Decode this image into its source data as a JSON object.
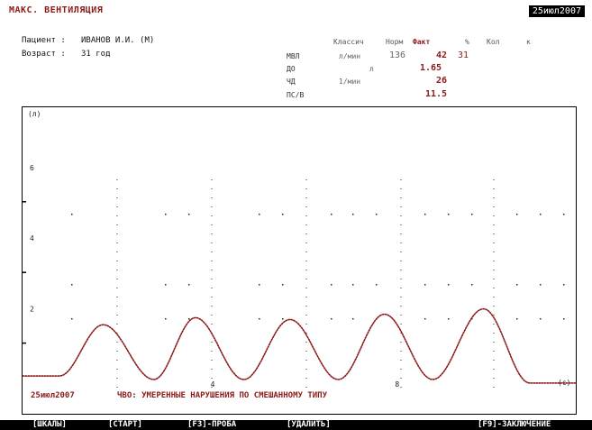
{
  "window": {
    "title": "МАКС. ВЕНТИЛЯЦИЯ",
    "date": "25июл2007"
  },
  "patient": {
    "name_label": "Пациент :",
    "name_value": "ИВАНОВ И.И. (М)",
    "age_label": "Возраст :",
    "age_value": "31 год"
  },
  "params_table": {
    "headers": [
      "Классич",
      "Норм",
      "Факт",
      "%",
      "Кол",
      "к"
    ],
    "rows": [
      {
        "label": "МВЛ",
        "unit": "л/мин",
        "norm": "136",
        "fact": "42",
        "pct": "31"
      },
      {
        "label": "ДО",
        "unit": "л",
        "norm": "",
        "fact": "1.65",
        "pct": ""
      },
      {
        "label": "ЧД",
        "unit": "1/мин",
        "norm": "",
        "fact": "26",
        "pct": ""
      },
      {
        "label": "ПС/В",
        "unit": "",
        "norm": "",
        "fact": "11.5",
        "pct": ""
      }
    ]
  },
  "graph": {
    "y_unit_label": "(л)",
    "y_ticks": [
      "6",
      "4",
      "2"
    ],
    "x_unit_label": "(с)",
    "x_ticks": [
      "4",
      "8"
    ],
    "trace_color": "#8b1a1a"
  },
  "chart_data": {
    "type": "line",
    "title": "",
    "xlabel": "(с)",
    "ylabel": "(л)",
    "xlim": [
      0,
      12
    ],
    "ylim": [
      0,
      7.5
    ],
    "series": [
      {
        "x": [
          0,
          0.8,
          1.75,
          2.85,
          3.75,
          4.8,
          5.8,
          6.85,
          7.85,
          8.9,
          10.0,
          11.0,
          12.0
        ],
        "y": [
          0.1,
          0.1,
          1.55,
          0.0,
          1.75,
          0.0,
          1.7,
          0.0,
          1.85,
          0.0,
          2.0,
          -0.1,
          -0.1
        ]
      }
    ]
  },
  "status": {
    "date": "25июл2007",
    "message": "ЧВО: УМЕРЕННЫЕ НАРУШЕНИЯ ПО СМЕШАННОМУ ТИПУ"
  },
  "function_keys": [
    "[ШКАЛЫ]",
    "[СТАРТ]",
    "[F3]-ПРОБА",
    "[УДАЛИТЬ]",
    "[F9]-ЗАКЛЮЧЕНИЕ"
  ]
}
